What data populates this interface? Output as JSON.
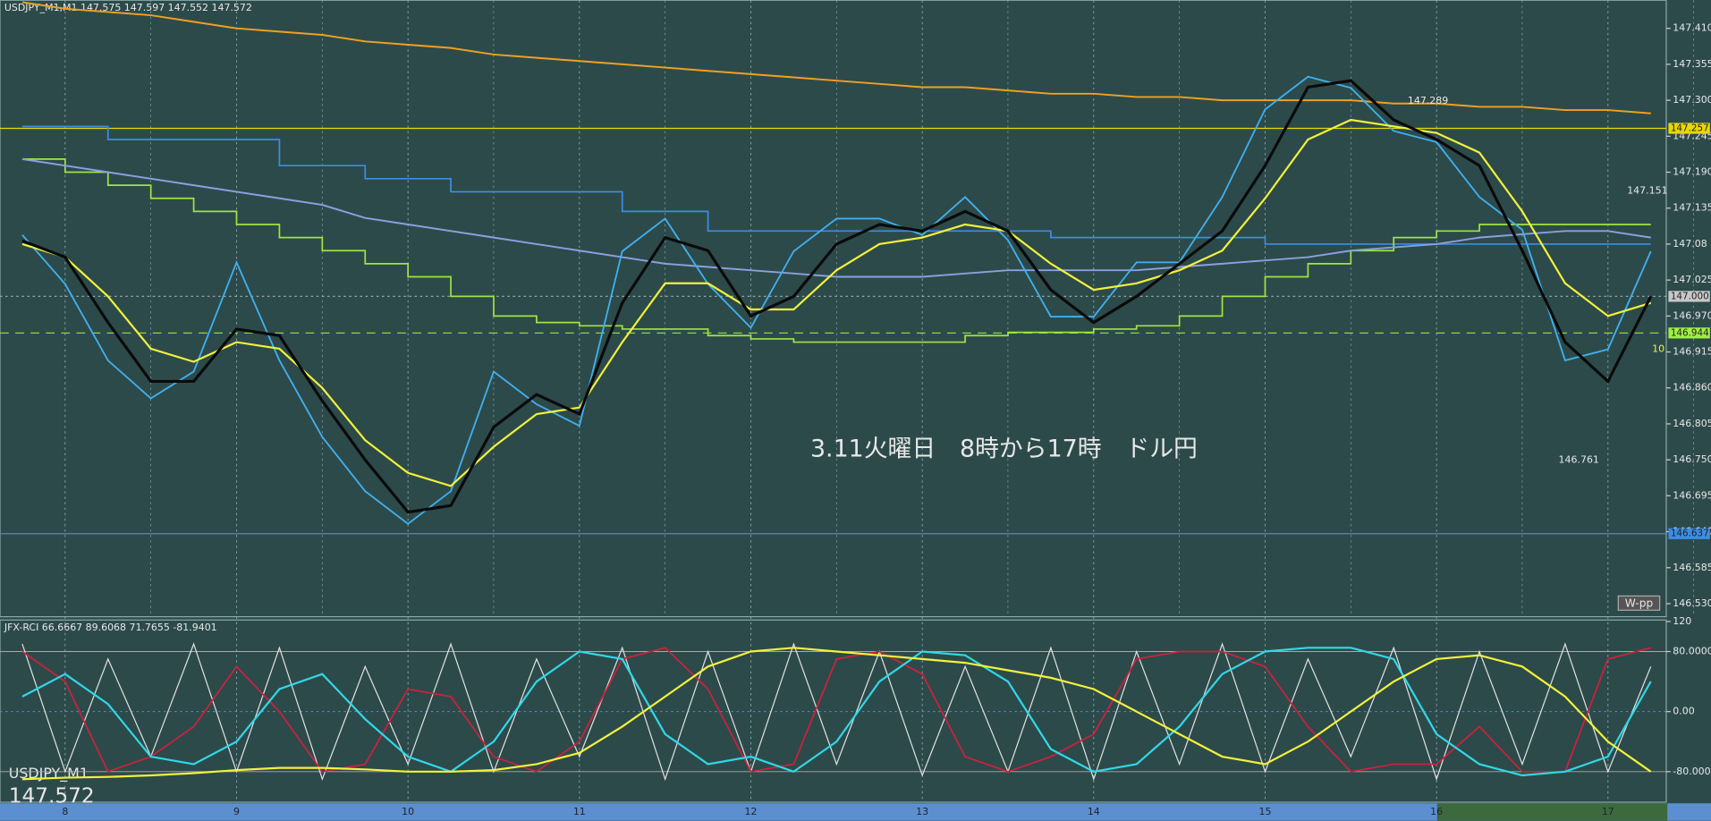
{
  "chart_data": [
    {
      "type": "line",
      "header": "USDJPY_M1,M1  147.575 147.597 147.552 147.572",
      "title": "3.11火曜日　8時から17時　ドル円",
      "symbol": "USDJPY_M1",
      "last_price": 147.572,
      "badge": "W-pp",
      "side_label": 10,
      "x": [
        7.75,
        8,
        8.25,
        8.5,
        8.75,
        9,
        9.25,
        9.5,
        9.75,
        10,
        10.25,
        10.5,
        10.75,
        11,
        11.25,
        11.5,
        11.75,
        12,
        12.25,
        12.5,
        12.75,
        13,
        13.25,
        13.5,
        13.75,
        14,
        14.25,
        14.5,
        14.75,
        15,
        15.25,
        15.5,
        15.75,
        16,
        16.25,
        16.5,
        16.75,
        17,
        17.25
      ],
      "xlim": [
        7.62,
        17.34
      ],
      "xticks": [
        8,
        9,
        10,
        11,
        12,
        13,
        14,
        15,
        16,
        17
      ],
      "ylim": [
        146.51,
        147.453
      ],
      "yticks": [
        {
          "value": 147.41,
          "label": "147.410"
        },
        147.355,
        {
          "value": 147.3,
          "label": "147.300"
        },
        147.245,
        {
          "value": 147.19,
          "label": "147.190"
        },
        147.135,
        147.08,
        147.025,
        {
          "value": 146.97,
          "label": "146.970"
        },
        146.915,
        {
          "value": 146.86,
          "label": "146.860"
        },
        146.805,
        {
          "value": 146.75,
          "label": "146.750"
        },
        146.695,
        {
          "value": 146.64,
          "label": "146.640"
        },
        146.585,
        {
          "value": 146.53,
          "label": "146.530"
        }
      ],
      "grid": true,
      "series": [
        {
          "color": "#f0a020",
          "width": 1.6,
          "values": [
            147.45,
            147.44,
            147.435,
            147.43,
            147.42,
            147.41,
            147.405,
            147.4,
            147.39,
            147.385,
            147.38,
            147.37,
            147.365,
            147.36,
            147.355,
            147.35,
            147.345,
            147.34,
            147.335,
            147.33,
            147.325,
            147.32,
            147.32,
            147.315,
            147.31,
            147.31,
            147.305,
            147.305,
            147.3,
            147.3,
            147.3,
            147.3,
            147.295,
            147.295,
            147.29,
            147.29,
            147.285,
            147.285,
            147.28
          ]
        },
        {
          "color": "#3a8ee6",
          "width": 1.4,
          "step": true,
          "values": [
            147.26,
            147.26,
            147.24,
            147.24,
            147.24,
            147.24,
            147.2,
            147.2,
            147.18,
            147.18,
            147.16,
            147.16,
            147.16,
            147.16,
            147.13,
            147.13,
            147.1,
            147.1,
            147.1,
            147.1,
            147.1,
            147.1,
            147.1,
            147.1,
            147.09,
            147.09,
            147.09,
            147.09,
            147.09,
            147.08,
            147.08,
            147.08,
            147.08,
            147.08,
            147.08,
            147.08,
            147.08,
            147.08,
            147.08
          ]
        },
        {
          "color": "#9ee640",
          "width": 1.4,
          "step": true,
          "values": [
            147.21,
            147.19,
            147.17,
            147.15,
            147.13,
            147.11,
            147.09,
            147.07,
            147.05,
            147.03,
            147,
            146.97,
            146.96,
            146.955,
            146.95,
            146.95,
            146.94,
            146.935,
            146.93,
            146.93,
            146.93,
            146.93,
            146.94,
            146.945,
            146.945,
            146.95,
            146.955,
            146.97,
            147,
            147.03,
            147.05,
            147.07,
            147.09,
            147.1,
            147.11,
            147.11,
            147.11,
            147.11,
            147.11
          ]
        },
        {
          "color": "#8aa0e0",
          "width": 1.6,
          "values": [
            147.21,
            147.2,
            147.19,
            147.18,
            147.17,
            147.16,
            147.15,
            147.14,
            147.12,
            147.11,
            147.1,
            147.09,
            147.08,
            147.07,
            147.06,
            147.05,
            147.045,
            147.04,
            147.035,
            147.03,
            147.03,
            147.03,
            147.035,
            147.04,
            147.04,
            147.04,
            147.04,
            147.045,
            147.05,
            147.055,
            147.06,
            147.07,
            147.075,
            147.08,
            147.09,
            147.095,
            147.1,
            147.1,
            147.09
          ]
        },
        {
          "color": "#3fb0f0",
          "width": 1.5,
          "values": [
            147.094,
            147.019,
            146.902,
            146.844,
            146.885,
            147.052,
            146.902,
            146.785,
            146.702,
            146.652,
            146.702,
            146.885,
            146.835,
            146.802,
            147.069,
            147.119,
            147.019,
            146.952,
            147.069,
            147.119,
            147.119,
            147.094,
            147.152,
            147.086,
            146.969,
            146.969,
            147.052,
            147.052,
            147.152,
            147.286,
            147.336,
            147.319,
            147.253,
            147.236,
            147.152,
            147.102,
            146.902,
            146.919,
            147.069
          ]
        },
        {
          "color": "#f2f23a",
          "width": 1.8,
          "values": [
            147.08,
            147.06,
            147,
            146.92,
            146.9,
            146.93,
            146.92,
            146.86,
            146.78,
            146.73,
            146.71,
            146.77,
            146.82,
            146.83,
            146.93,
            147.02,
            147.02,
            146.98,
            146.98,
            147.04,
            147.08,
            147.09,
            147.11,
            147.1,
            147.05,
            147.01,
            147.02,
            147.04,
            147.07,
            147.15,
            147.24,
            147.27,
            147.26,
            147.25,
            147.22,
            147.13,
            147.02,
            146.97,
            146.99
          ]
        },
        {
          "color": "#0a0a0a",
          "width": 2.6,
          "values": [
            147.085,
            147.06,
            146.96,
            146.87,
            146.87,
            146.95,
            146.94,
            146.84,
            146.75,
            146.67,
            146.68,
            146.8,
            146.85,
            146.82,
            146.99,
            147.09,
            147.07,
            146.97,
            147,
            147.08,
            147.11,
            147.1,
            147.13,
            147.1,
            147.01,
            146.96,
            147,
            147.05,
            147.1,
            147.2,
            147.32,
            147.33,
            147.27,
            147.24,
            147.2,
            147.07,
            146.93,
            146.87,
            147
          ]
        }
      ],
      "hlines": [
        {
          "value": 147.257,
          "label": "147.257",
          "color": "#e8d800",
          "tag": "#e8d800"
        },
        {
          "value": 147,
          "label": "147.000",
          "color": "#9aa8a8",
          "tag": "#c8c8c8",
          "dash": "2 3"
        },
        {
          "value": 146.944,
          "label": "146.944",
          "color": "#8ed640",
          "tag": "#a0f040",
          "dash": "8 6"
        },
        {
          "value": 146.637,
          "label": "146.637",
          "color": "#3a8ee6",
          "tag": "#3a8ee6"
        }
      ],
      "annotations": [
        {
          "x": 15.95,
          "value": 147.289
        },
        {
          "x": 17.23,
          "value": 147.151
        },
        {
          "x": 16.83,
          "value": 146.761
        }
      ]
    },
    {
      "type": "line",
      "header": "JFX-RCI 66.6667 89.6068 71.7655 -81.9401",
      "x": [
        7.75,
        8,
        8.25,
        8.5,
        8.75,
        9,
        9.25,
        9.5,
        9.75,
        10,
        10.25,
        10.5,
        10.75,
        11,
        11.25,
        11.5,
        11.75,
        12,
        12.25,
        12.5,
        12.75,
        13,
        13.25,
        13.5,
        13.75,
        14,
        14.25,
        14.5,
        14.75,
        15,
        15.25,
        15.5,
        15.75,
        16,
        16.25,
        16.5,
        16.75,
        17,
        17.25
      ],
      "xlim": [
        7.62,
        17.34
      ],
      "ylim": [
        -120.7,
        122
      ],
      "yticks": [
        120,
        {
          "value": 80,
          "label": "80.0000"
        },
        {
          "value": 0,
          "label": "0.00"
        },
        {
          "value": -80,
          "label": "-80.0000"
        }
      ],
      "series": [
        {
          "color": "#e0e0e0",
          "width": 1,
          "values": [
            90,
            -80,
            70,
            -60,
            90,
            -80,
            85,
            -90,
            60,
            -70,
            90,
            -80,
            70,
            -60,
            85,
            -90,
            80,
            -80,
            90,
            -70,
            80,
            -85,
            60,
            -80,
            85,
            -90,
            80,
            -70,
            90,
            -80,
            70,
            -60,
            85,
            -90,
            80,
            -70,
            90,
            -80,
            60
          ]
        },
        {
          "color": "#d0203c",
          "width": 1.4,
          "values": [
            80,
            40,
            -80,
            -60,
            -20,
            60,
            0,
            -80,
            -70,
            30,
            20,
            -60,
            -80,
            -40,
            70,
            85,
            30,
            -80,
            -70,
            70,
            80,
            50,
            -60,
            -80,
            -60,
            -30,
            70,
            80,
            80,
            60,
            -20,
            -80,
            -70,
            -70,
            -20,
            -80,
            -80,
            70,
            85
          ]
        },
        {
          "color": "#30d8e8",
          "width": 1.8,
          "values": [
            20,
            50,
            10,
            -60,
            -70,
            -40,
            30,
            50,
            -10,
            -60,
            -80,
            -40,
            40,
            80,
            70,
            -30,
            -70,
            -60,
            -80,
            -40,
            40,
            80,
            75,
            40,
            -50,
            -80,
            -70,
            -20,
            50,
            80,
            85,
            85,
            70,
            -30,
            -70,
            -85,
            -80,
            -60,
            40
          ]
        },
        {
          "color": "#f2f23a",
          "width": 1.8,
          "values": [
            -90,
            -88,
            -87,
            -85,
            -82,
            -78,
            -75,
            -75,
            -77,
            -80,
            -80,
            -78,
            -70,
            -55,
            -20,
            20,
            60,
            80,
            85,
            80,
            75,
            70,
            65,
            55,
            45,
            30,
            0,
            -30,
            -60,
            -70,
            -40,
            0,
            40,
            70,
            75,
            60,
            20,
            -40,
            -80
          ]
        }
      ]
    }
  ]
}
